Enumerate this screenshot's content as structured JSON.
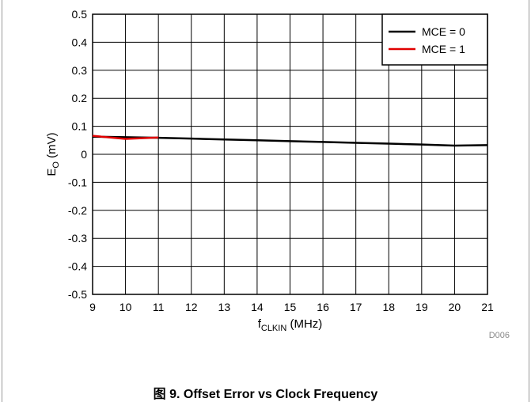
{
  "caption": "图 9. Offset Error vs Clock Frequency",
  "chart_data": {
    "type": "line",
    "title": "",
    "xlabel_main": "f",
    "xlabel_sub": "CLKIN",
    "xlabel_unit": " (MHz)",
    "ylabel_main": "E",
    "ylabel_sub": "O",
    "ylabel_unit": " (mV)",
    "xlim": [
      9,
      21
    ],
    "ylim": [
      -0.5,
      0.5
    ],
    "x_ticks": [
      "9",
      "10",
      "11",
      "12",
      "13",
      "14",
      "15",
      "16",
      "17",
      "18",
      "19",
      "20",
      "21"
    ],
    "y_ticks": [
      "0.5",
      "0.4",
      "0.3",
      "0.2",
      "0.1",
      "0",
      "-0.1",
      "-0.2",
      "-0.3",
      "-0.4",
      "-0.5"
    ],
    "grid": true,
    "legend_position": "top-right",
    "code": "D006",
    "series": [
      {
        "name": "MCE = 0",
        "color": "#000000",
        "x": [
          9,
          10,
          11,
          12,
          13,
          14,
          15,
          16,
          17,
          18,
          19,
          20,
          21
        ],
        "y": [
          0.063,
          0.061,
          0.059,
          0.056,
          0.053,
          0.05,
          0.047,
          0.044,
          0.041,
          0.038,
          0.035,
          0.031,
          0.033
        ]
      },
      {
        "name": "MCE = 1",
        "color": "#e00000",
        "x": [
          9,
          10,
          11
        ],
        "y": [
          0.066,
          0.055,
          0.06
        ]
      }
    ]
  }
}
